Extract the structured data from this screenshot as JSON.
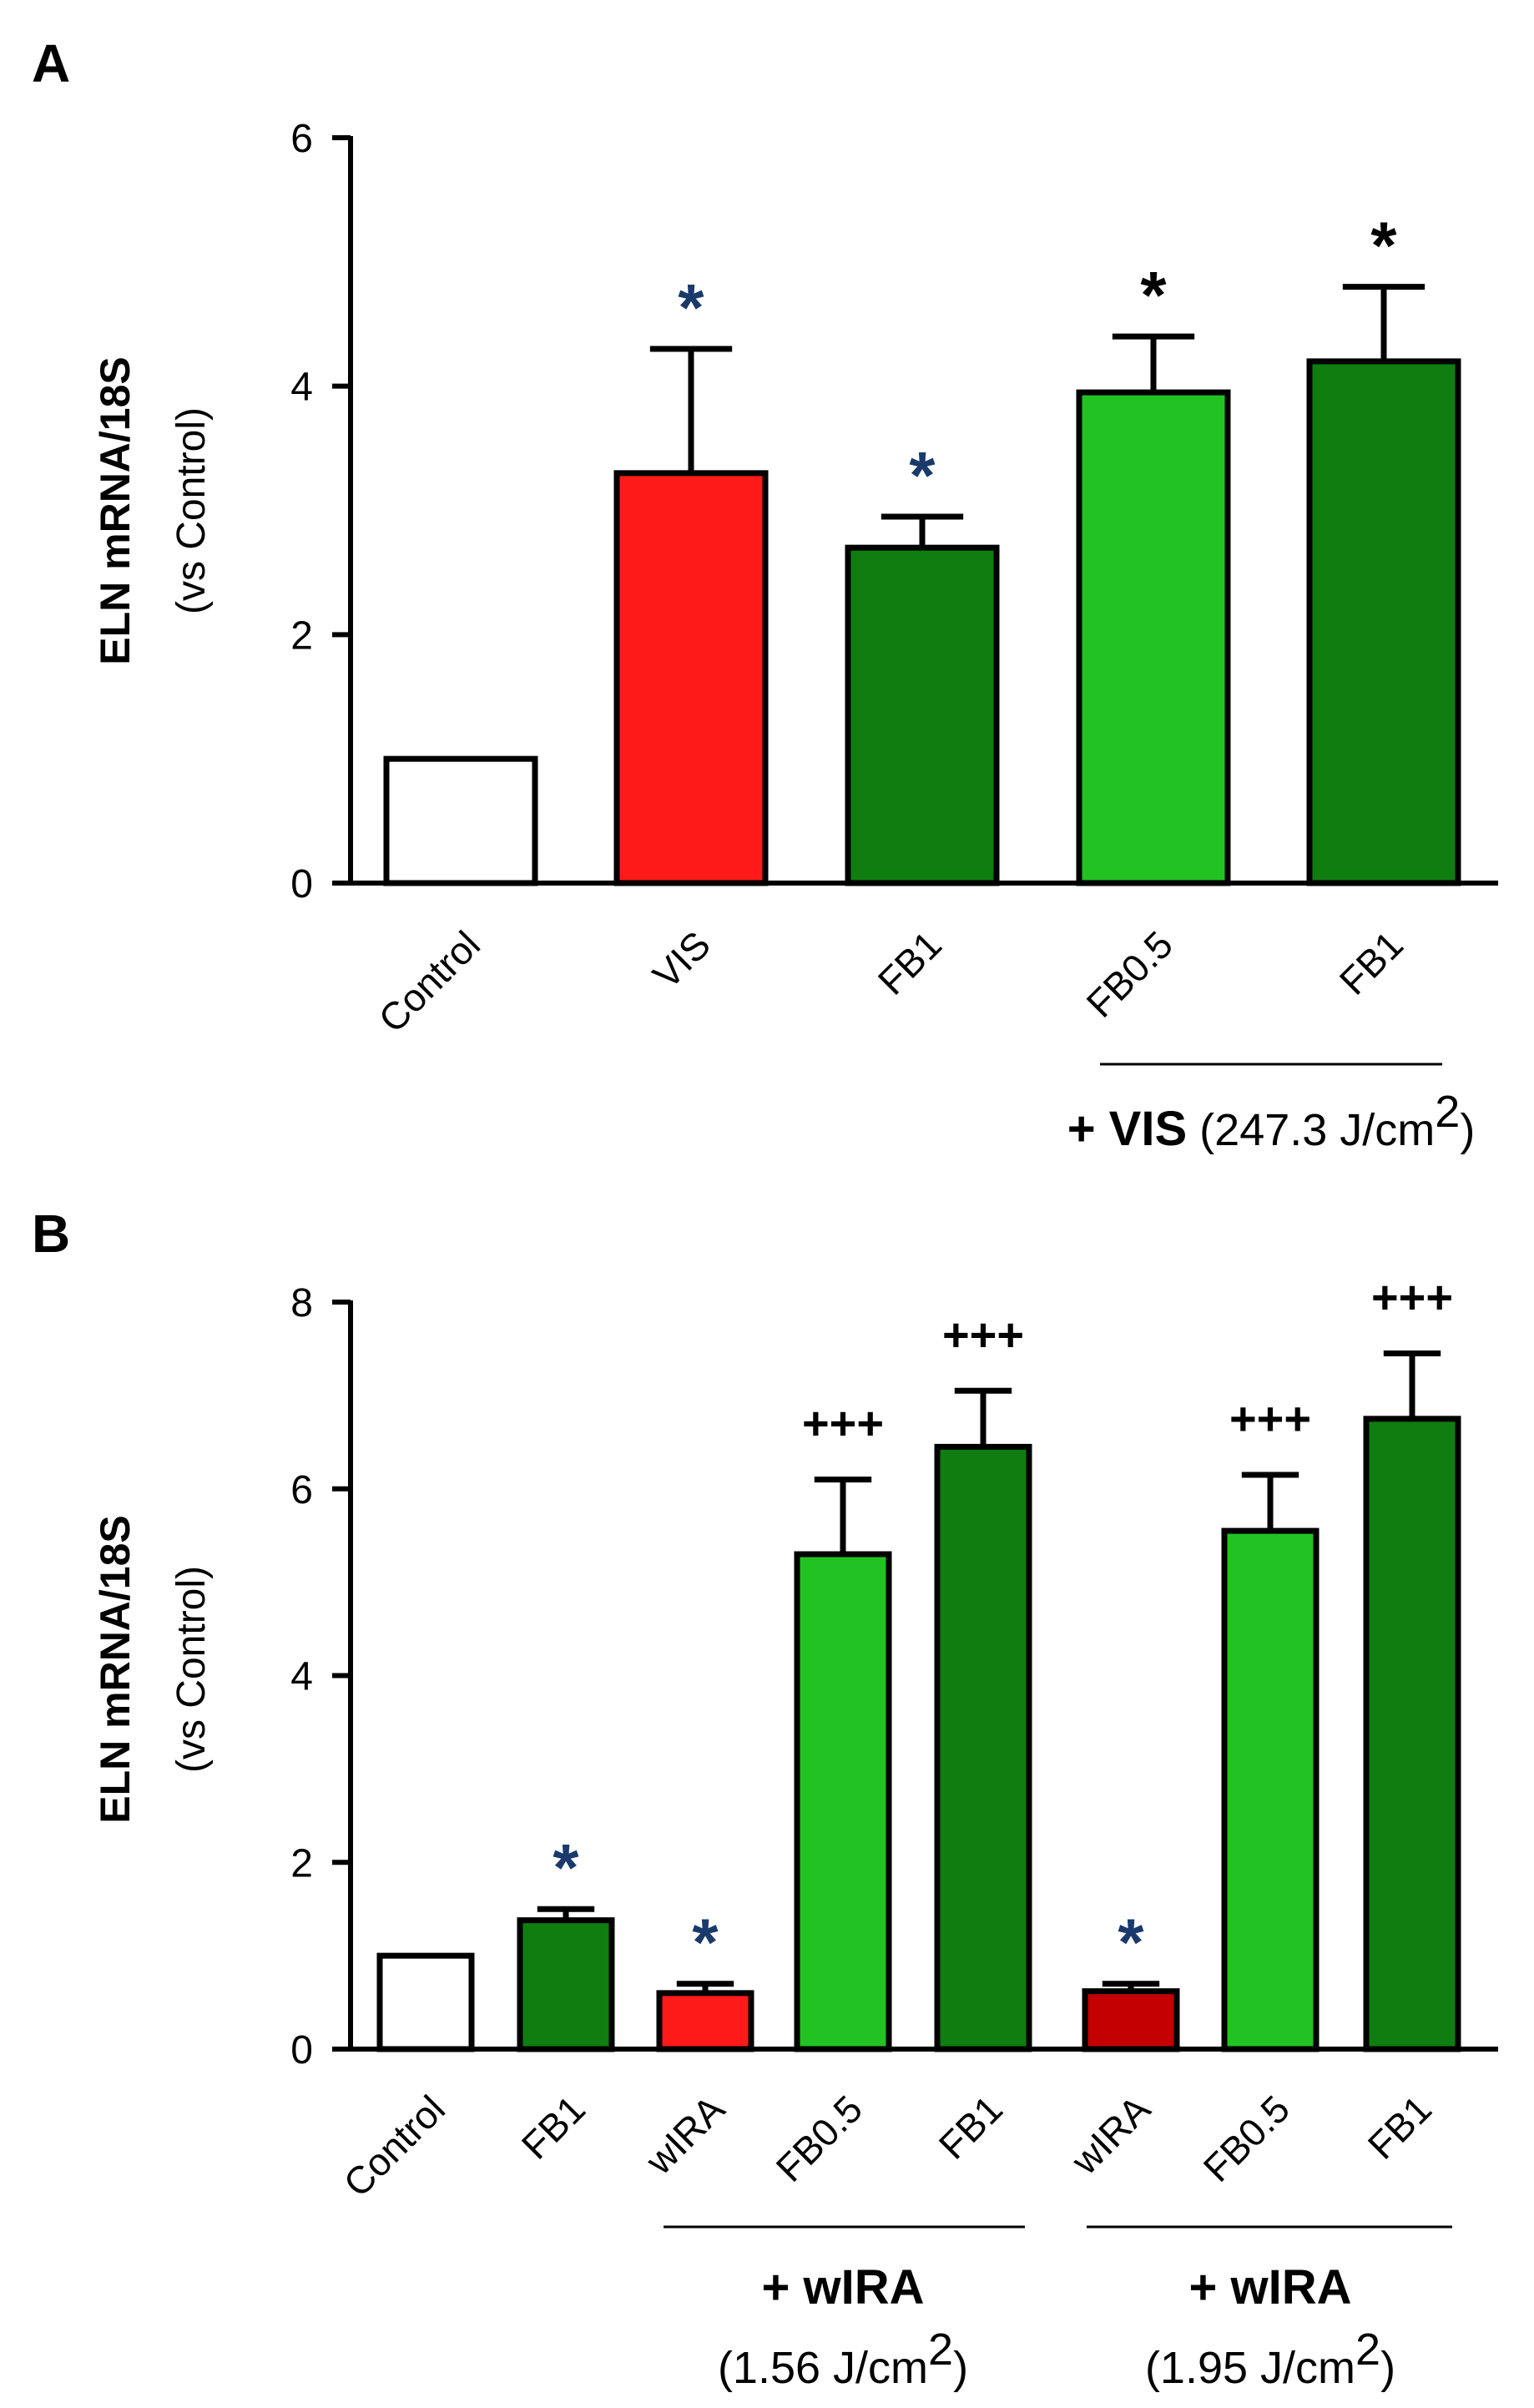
{
  "chart_data": [
    {
      "panel": "A",
      "type": "bar",
      "ylabel": "ELN mRNA/18S",
      "ylabel_sub": "(vs Control)",
      "ylim": [
        0,
        6
      ],
      "yticks": [
        "0",
        "2",
        "4",
        "6"
      ],
      "categories": [
        "Control",
        "VIS",
        "FB1",
        "FB0.5",
        "FB1"
      ],
      "values": [
        1.0,
        3.3,
        2.7,
        3.95,
        4.2
      ],
      "errors": [
        0,
        1.0,
        0.25,
        0.45,
        0.6
      ],
      "colors": [
        "#ffffff",
        "#ff1a1a",
        "#0f7d0f",
        "#22c222",
        "#0f7d0f"
      ],
      "significance": [
        "",
        "*",
        "*",
        "*",
        "*"
      ],
      "sig_colors": [
        "#000000",
        "#1a3a6b",
        "#1a3a6b",
        "#000000",
        "#000000"
      ],
      "groups": [
        {
          "label_bold": "+ VIS",
          "label_rest": "(247.3 J/cm",
          "sup": "2",
          "close": ")"
        }
      ]
    },
    {
      "panel": "B",
      "type": "bar",
      "ylabel": "ELN mRNA/18S",
      "ylabel_sub": "(vs Control)",
      "ylim": [
        0,
        8
      ],
      "yticks": [
        "0",
        "2",
        "4",
        "6",
        "8"
      ],
      "categories": [
        "Control",
        "FB1",
        "wIRA",
        "FB0.5",
        "FB1",
        "wIRA",
        "FB0.5",
        "FB1"
      ],
      "values": [
        1.0,
        1.38,
        0.6,
        5.3,
        6.45,
        0.62,
        5.55,
        6.75
      ],
      "errors": [
        0,
        0.12,
        0.1,
        0.8,
        0.6,
        0.08,
        0.6,
        0.7
      ],
      "colors": [
        "#ffffff",
        "#0f7d0f",
        "#ff1a1a",
        "#22c222",
        "#0f7d0f",
        "#c40000",
        "#22c222",
        "#0f7d0f"
      ],
      "significance": [
        "",
        "*",
        "*",
        "+++",
        "+++",
        "*",
        "+++",
        "+++"
      ],
      "sig_colors": [
        "#000000",
        "#1a3a6b",
        "#1a3a6b",
        "#000000",
        "#000000",
        "#1a3a6b",
        "#000000",
        "#000000"
      ],
      "groups": [
        {
          "label_bold": "+ wIRA",
          "label_rest": "(1.56 J/cm",
          "sup": "2",
          "close": ")"
        },
        {
          "label_bold": "+ wIRA",
          "label_rest": "(1.95 J/cm",
          "sup": "2",
          "close": ")"
        }
      ]
    }
  ]
}
